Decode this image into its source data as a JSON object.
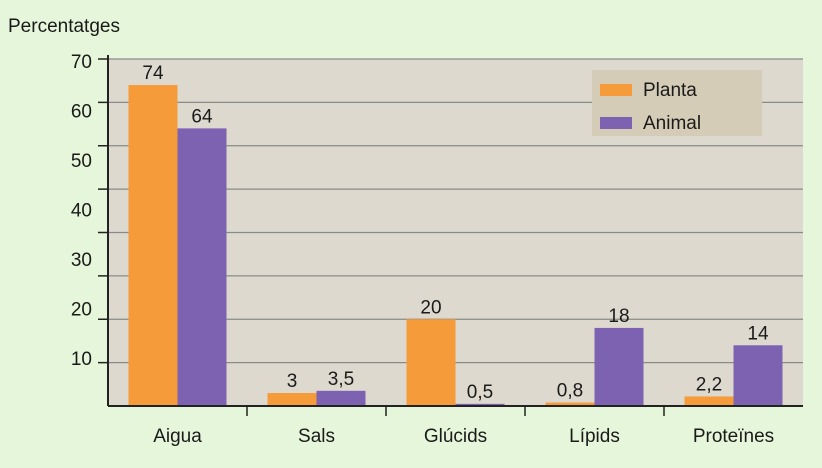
{
  "chart_data": {
    "type": "bar",
    "title": "",
    "ylabel": "Percentatges",
    "xlabel": "",
    "ylim": [
      0,
      80
    ],
    "ytick_labels": [
      "70",
      "60",
      "50",
      "40",
      "30",
      "20",
      "10"
    ],
    "grid": true,
    "legend_position": "top-right",
    "categories": [
      "Aigua",
      "Sals",
      "Glúcids",
      "Lípids",
      "Proteïnes"
    ],
    "series": [
      {
        "name": "Planta",
        "color": "#f59b3a",
        "values": [
          74,
          3,
          20,
          0.8,
          2.2
        ],
        "labels": [
          "74",
          "3",
          "20",
          "0,8",
          "2,2"
        ]
      },
      {
        "name": "Animal",
        "color": "#7d62b2",
        "values": [
          64,
          3.5,
          0.5,
          18,
          14
        ],
        "labels": [
          "64",
          "3,5",
          "0,5",
          "18",
          "14"
        ]
      }
    ]
  }
}
